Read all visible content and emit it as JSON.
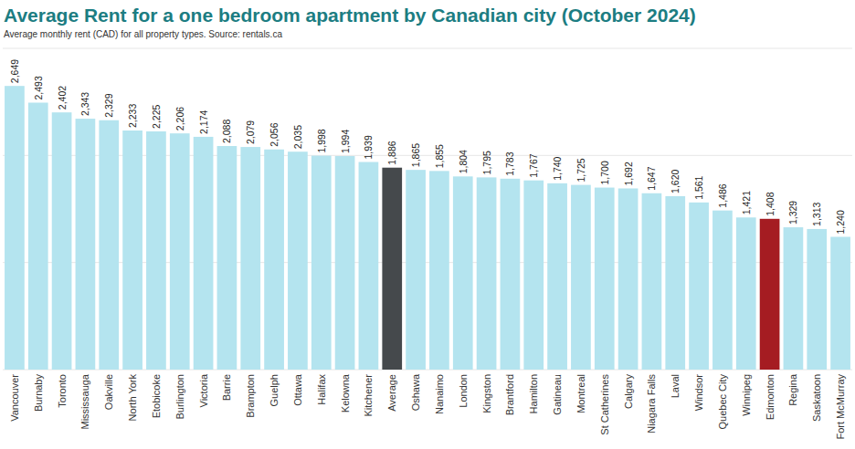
{
  "chart_data": {
    "type": "bar",
    "title": "Average Rent for a one bedroom apartment by Canadian city (October 2024)",
    "subtitle": "Average monthly rent (CAD) for all property types. Source: rentals.ca",
    "categories": [
      "Vancouver",
      "Burnaby",
      "Toronto",
      "Mississauga",
      "Oakville",
      "North York",
      "Etobicoke",
      "Burlington",
      "Victoria",
      "Barrie",
      "Brampton",
      "Guelph",
      "Ottawa",
      "Halifax",
      "Kelowna",
      "Kitchener",
      "Average",
      "Oshawa",
      "Nanaimo",
      "London",
      "Kingston",
      "Brantford",
      "Hamilton",
      "Gatineau",
      "Montreal",
      "St Catherines",
      "Calgary",
      "Niagara Falls",
      "Laval",
      "Windsor",
      "Quebec City",
      "Winnipeg",
      "Edmonton",
      "Regina",
      "Saskatoon",
      "Fort McMurray"
    ],
    "values": [
      2649,
      2493,
      2402,
      2343,
      2329,
      2233,
      2225,
      2206,
      2174,
      2088,
      2079,
      2056,
      2035,
      1998,
      1994,
      1939,
      1886,
      1865,
      1855,
      1804,
      1795,
      1783,
      1767,
      1740,
      1725,
      1700,
      1692,
      1647,
      1620,
      1561,
      1486,
      1421,
      1408,
      1329,
      1313,
      1240
    ],
    "value_labels": [
      "2,649",
      "2,493",
      "2,402",
      "2,343",
      "2,329",
      "2,233",
      "2,225",
      "2,206",
      "2,174",
      "2,088",
      "2,079",
      "2,056",
      "2,035",
      "1,998",
      "1,994",
      "1,939",
      "1,886",
      "1,865",
      "1,855",
      "1,804",
      "1,795",
      "1,783",
      "1,767",
      "1,740",
      "1,725",
      "1,700",
      "1,692",
      "1,647",
      "1,620",
      "1,561",
      "1,486",
      "1,421",
      "1,408",
      "1,329",
      "1,313",
      "1,240"
    ],
    "colors": [
      "#b4e4ef",
      "#b4e4ef",
      "#b4e4ef",
      "#b4e4ef",
      "#b4e4ef",
      "#b4e4ef",
      "#b4e4ef",
      "#b4e4ef",
      "#b4e4ef",
      "#b4e4ef",
      "#b4e4ef",
      "#b4e4ef",
      "#b4e4ef",
      "#b4e4ef",
      "#b4e4ef",
      "#b4e4ef",
      "#45494c",
      "#b4e4ef",
      "#b4e4ef",
      "#b4e4ef",
      "#b4e4ef",
      "#b4e4ef",
      "#b4e4ef",
      "#b4e4ef",
      "#b4e4ef",
      "#b4e4ef",
      "#b4e4ef",
      "#b4e4ef",
      "#b4e4ef",
      "#b4e4ef",
      "#b4e4ef",
      "#b4e4ef",
      "#a51c22",
      "#b4e4ef",
      "#b4e4ef",
      "#b4e4ef"
    ],
    "ylim": [
      0,
      3000
    ],
    "yticks": [
      0,
      1000,
      2000,
      3000
    ],
    "grid": true,
    "data_labels": true,
    "tick_labels": "x"
  }
}
